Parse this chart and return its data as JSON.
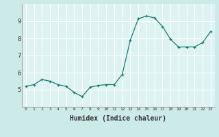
{
  "x": [
    0,
    1,
    2,
    3,
    4,
    5,
    6,
    7,
    8,
    9,
    10,
    11,
    12,
    13,
    14,
    15,
    16,
    17,
    18,
    19,
    20,
    21,
    22,
    23
  ],
  "y": [
    5.2,
    5.3,
    5.6,
    5.5,
    5.3,
    5.2,
    4.85,
    4.6,
    5.15,
    5.25,
    5.3,
    5.3,
    5.9,
    7.9,
    9.15,
    9.3,
    9.2,
    8.7,
    7.95,
    7.5,
    7.5,
    7.5,
    7.75,
    8.4
  ],
  "title": "",
  "xlabel": "Humidex (Indice chaleur)",
  "ylabel": "",
  "ylim": [
    4.0,
    10.0
  ],
  "xlim": [
    -0.5,
    23.5
  ],
  "line_color": "#1a7a6e",
  "marker_color": "#1a7a6e",
  "bg_color": "#cceae8",
  "grid_color": "#ffffff",
  "axis_bg": "#ddf3f2",
  "tick_color": "#333333",
  "xlabel_fontsize": 7,
  "yticks": [
    5,
    6,
    7,
    8,
    9
  ],
  "xticks": [
    0,
    1,
    2,
    3,
    4,
    5,
    6,
    7,
    8,
    9,
    10,
    11,
    12,
    13,
    14,
    15,
    16,
    17,
    18,
    19,
    20,
    21,
    22,
    23
  ]
}
